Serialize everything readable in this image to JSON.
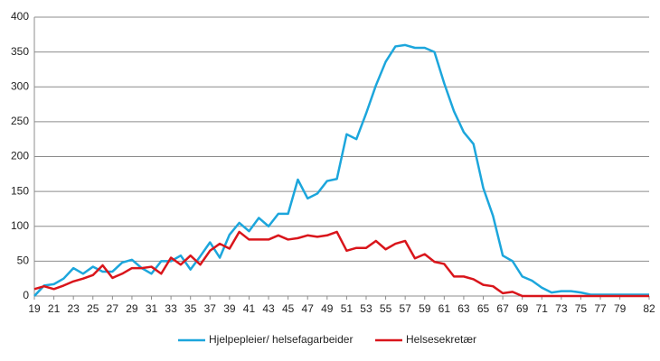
{
  "chart_data": {
    "type": "line",
    "x": [
      19,
      20,
      21,
      22,
      23,
      24,
      25,
      26,
      27,
      28,
      29,
      30,
      31,
      32,
      33,
      34,
      35,
      36,
      37,
      38,
      39,
      40,
      41,
      42,
      43,
      44,
      45,
      46,
      47,
      48,
      49,
      50,
      51,
      52,
      53,
      54,
      55,
      56,
      57,
      58,
      59,
      60,
      61,
      62,
      63,
      64,
      65,
      66,
      67,
      68,
      69,
      70,
      71,
      72,
      73,
      74,
      75,
      76,
      77,
      78,
      79,
      80,
      81,
      82
    ],
    "series": [
      {
        "name": "Hjelpepleier/ helsefagarbeider",
        "color": "#1ca6dc",
        "values": [
          0,
          15,
          17,
          25,
          40,
          32,
          42,
          35,
          35,
          48,
          52,
          40,
          32,
          50,
          50,
          58,
          38,
          57,
          77,
          55,
          88,
          105,
          93,
          112,
          100,
          118,
          118,
          167,
          140,
          147,
          165,
          168,
          232,
          225,
          262,
          302,
          336,
          358,
          360,
          356,
          356,
          350,
          305,
          265,
          235,
          218,
          155,
          115,
          58,
          50,
          28,
          22,
          12,
          5,
          7,
          7,
          5,
          2,
          2,
          2,
          2,
          2,
          2,
          2
        ]
      },
      {
        "name": "Helsesekretær",
        "color": "#d9151b",
        "values": [
          10,
          14,
          10,
          15,
          21,
          25,
          30,
          44,
          26,
          32,
          40,
          40,
          42,
          32,
          55,
          45,
          58,
          45,
          65,
          75,
          68,
          92,
          81,
          81,
          81,
          87,
          81,
          83,
          87,
          85,
          87,
          92,
          65,
          69,
          69,
          79,
          67,
          75,
          79,
          54,
          60,
          49,
          46,
          28,
          28,
          24,
          16,
          14,
          4,
          6,
          0,
          0,
          0,
          0,
          0,
          0,
          0,
          0,
          0,
          0,
          0,
          0,
          0,
          0
        ]
      }
    ],
    "xlim": [
      19,
      82
    ],
    "xticks": [
      19,
      21,
      23,
      25,
      27,
      29,
      31,
      33,
      35,
      37,
      39,
      41,
      43,
      45,
      47,
      49,
      51,
      53,
      55,
      57,
      59,
      61,
      63,
      65,
      67,
      69,
      71,
      73,
      75,
      77,
      79,
      82
    ],
    "ylim": [
      0,
      400
    ],
    "yticks": [
      0,
      50,
      100,
      150,
      200,
      250,
      300,
      350,
      400
    ],
    "grid": true
  }
}
